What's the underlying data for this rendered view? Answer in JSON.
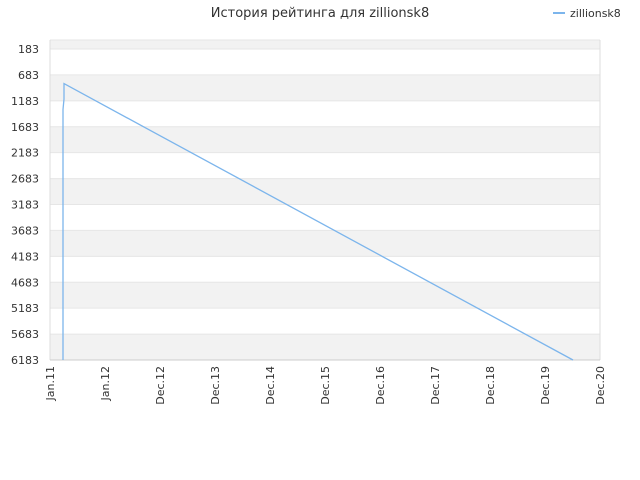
{
  "chart_data": {
    "type": "line",
    "title": "История рейтинга для zillionsk8",
    "xlabel": "",
    "ylabel": "",
    "y_inverted": true,
    "ylim": [
      183,
      6183
    ],
    "y_ticks": [
      "183",
      "683",
      "1183",
      "1683",
      "2183",
      "2683",
      "3183",
      "3683",
      "4183",
      "4683",
      "5183",
      "5683",
      "6183"
    ],
    "x_ticks": [
      "Jan.11",
      "Jan.12",
      "Dec.12",
      "Dec.13",
      "Dec.14",
      "Dec.15",
      "Dec.16",
      "Dec.17",
      "Dec.18",
      "Dec.19",
      "Dec.20"
    ],
    "grid": true,
    "legend_position": "top-right",
    "series": [
      {
        "name": "zillionsk8",
        "color": "#7cb5ec",
        "points": [
          {
            "x": "Mar.11",
            "y": 6183
          },
          {
            "x": "Mar.11",
            "y": 1350
          },
          {
            "x": "Mar.11",
            "y": 1150
          },
          {
            "x": "Mar.11",
            "y": 900
          },
          {
            "x": "Apr.11",
            "y": 850
          },
          {
            "x": "Jun.19",
            "y": 6183
          }
        ]
      }
    ]
  }
}
